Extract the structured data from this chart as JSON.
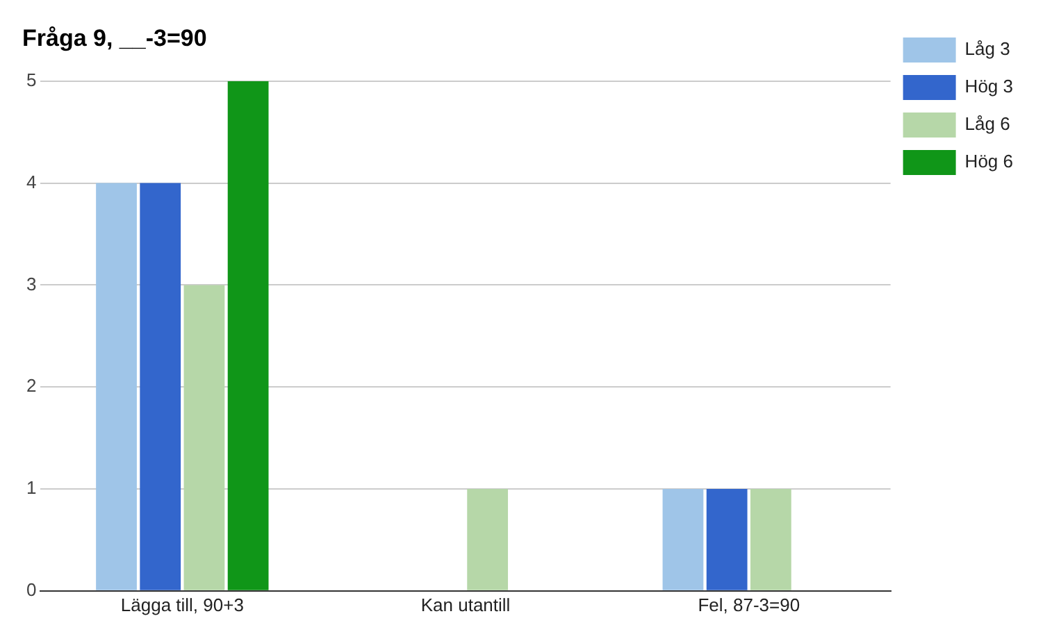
{
  "chart_data": {
    "type": "bar",
    "title": "Fråga 9, __-3=90",
    "categories": [
      "Lägga till, 90+3",
      "Kan utantill",
      "Fel, 87-3=90"
    ],
    "series": [
      {
        "name": "Låg 3",
        "color": "#9fc5e8",
        "values": [
          4,
          0,
          1
        ]
      },
      {
        "name": "Hög 3",
        "color": "#3366cc",
        "values": [
          4,
          0,
          1
        ]
      },
      {
        "name": "Låg 6",
        "color": "#b6d7a8",
        "values": [
          3,
          1,
          1
        ]
      },
      {
        "name": "Hög 6",
        "color": "#109618",
        "values": [
          5,
          0,
          0
        ]
      }
    ],
    "ylim": [
      0,
      5
    ],
    "yticks": [
      0,
      1,
      2,
      3,
      4,
      5
    ],
    "grid": "y",
    "legend": "right"
  }
}
